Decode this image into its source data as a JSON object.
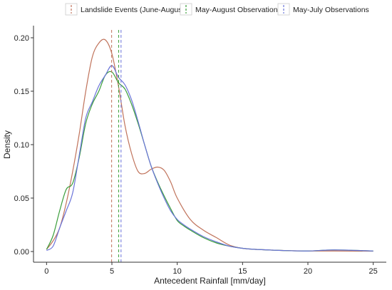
{
  "chart_data": {
    "type": "line",
    "title": "",
    "xlabel": "Antecedent Rainfall [mm/day]",
    "ylabel": "Density",
    "xlim": [
      -1,
      26
    ],
    "ylim": [
      -0.01,
      0.21
    ],
    "xticks": [
      0,
      5,
      10,
      15,
      20,
      25
    ],
    "yticks": [
      0.0,
      0.05,
      0.1,
      0.15,
      0.2
    ],
    "xtick_labels": [
      "0",
      "5",
      "10",
      "15",
      "20",
      "25"
    ],
    "ytick_labels": [
      "0.00",
      "0.05",
      "0.10",
      "0.15",
      "0.20"
    ],
    "grid": false,
    "legend_position": "top",
    "series": [
      {
        "name": "Landslide Events (June-August)",
        "color": "#C0735B",
        "x": [
          0,
          0.5,
          1,
          1.5,
          2,
          2.5,
          3,
          3.5,
          4,
          4.5,
          5,
          5.5,
          6,
          6.5,
          7,
          7.5,
          8,
          8.5,
          9,
          9.5,
          10,
          11,
          12,
          13,
          14,
          15,
          16,
          18,
          20,
          22,
          25
        ],
        "y": [
          0.002,
          0.01,
          0.022,
          0.045,
          0.075,
          0.11,
          0.15,
          0.182,
          0.195,
          0.198,
          0.185,
          0.155,
          0.118,
          0.092,
          0.075,
          0.073,
          0.077,
          0.079,
          0.076,
          0.065,
          0.05,
          0.03,
          0.02,
          0.013,
          0.006,
          0.003,
          0.002,
          0.001,
          0.0005,
          0.0005,
          0.0003
        ],
        "mean": 4.98
      },
      {
        "name": "May-August Observations",
        "color": "#3A9E3A",
        "x": [
          0,
          0.5,
          1,
          1.5,
          2,
          2.5,
          3,
          3.5,
          4,
          4.5,
          5,
          5.5,
          6,
          6.5,
          7,
          7.5,
          8,
          8.5,
          9,
          9.5,
          10,
          10.5,
          11,
          12,
          13,
          14,
          15,
          16,
          18,
          20,
          22,
          25
        ],
        "y": [
          0.002,
          0.015,
          0.038,
          0.058,
          0.064,
          0.088,
          0.12,
          0.138,
          0.15,
          0.165,
          0.168,
          0.158,
          0.152,
          0.138,
          0.12,
          0.1,
          0.08,
          0.065,
          0.052,
          0.04,
          0.029,
          0.024,
          0.02,
          0.013,
          0.008,
          0.005,
          0.003,
          0.002,
          0.001,
          0.0005,
          0.0015,
          0.0005
        ],
        "mean": 5.52
      },
      {
        "name": "May-July Observations",
        "color": "#6A74D9",
        "x": [
          0,
          0.5,
          1,
          1.5,
          2,
          2.5,
          3,
          3.5,
          4,
          4.5,
          5,
          5.5,
          6,
          6.5,
          7,
          7.5,
          8,
          8.5,
          9,
          9.5,
          10,
          10.5,
          11,
          12,
          13,
          14,
          15,
          16,
          18,
          20,
          22,
          25
        ],
        "y": [
          0.001,
          0.005,
          0.022,
          0.038,
          0.055,
          0.09,
          0.125,
          0.14,
          0.155,
          0.165,
          0.174,
          0.163,
          0.156,
          0.142,
          0.122,
          0.1,
          0.08,
          0.064,
          0.05,
          0.038,
          0.03,
          0.025,
          0.021,
          0.014,
          0.009,
          0.005,
          0.003,
          0.002,
          0.001,
          0.0005,
          0.0015,
          0.0005
        ],
        "mean": 5.7
      }
    ]
  }
}
